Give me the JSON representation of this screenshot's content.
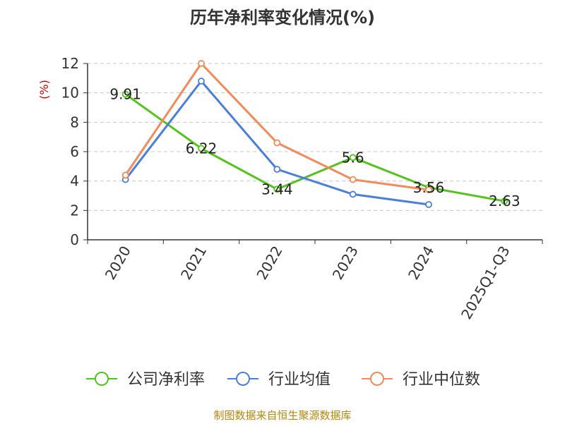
{
  "chart_data": {
    "type": "line",
    "title": "历年净利率变化情况(%)",
    "ylabel": "(%)",
    "xlabel": "",
    "categories": [
      "2020",
      "2021",
      "2022",
      "2023",
      "2024",
      "2025Q1-Q3"
    ],
    "ylim": [
      0,
      12
    ],
    "yticks": [
      0,
      2,
      4,
      6,
      8,
      10,
      12
    ],
    "grid": true,
    "legend_position": "bottom",
    "series": [
      {
        "name": "公司净利率",
        "color": "#52c41a",
        "values": [
          9.91,
          6.22,
          3.44,
          5.6,
          3.56,
          2.63
        ],
        "labels": [
          "9.91",
          "6.22",
          "3.44",
          "5.6",
          "3.56",
          "2.63"
        ]
      },
      {
        "name": "行业均值",
        "color": "#4a7fdc",
        "values": [
          4.1,
          10.8,
          4.8,
          3.1,
          2.4,
          null
        ]
      },
      {
        "name": "行业中位数",
        "color": "#f5895a",
        "values": [
          4.4,
          12.0,
          6.6,
          4.1,
          3.4,
          null
        ]
      }
    ]
  },
  "source_text": "制图数据来自恒生聚源数据库"
}
